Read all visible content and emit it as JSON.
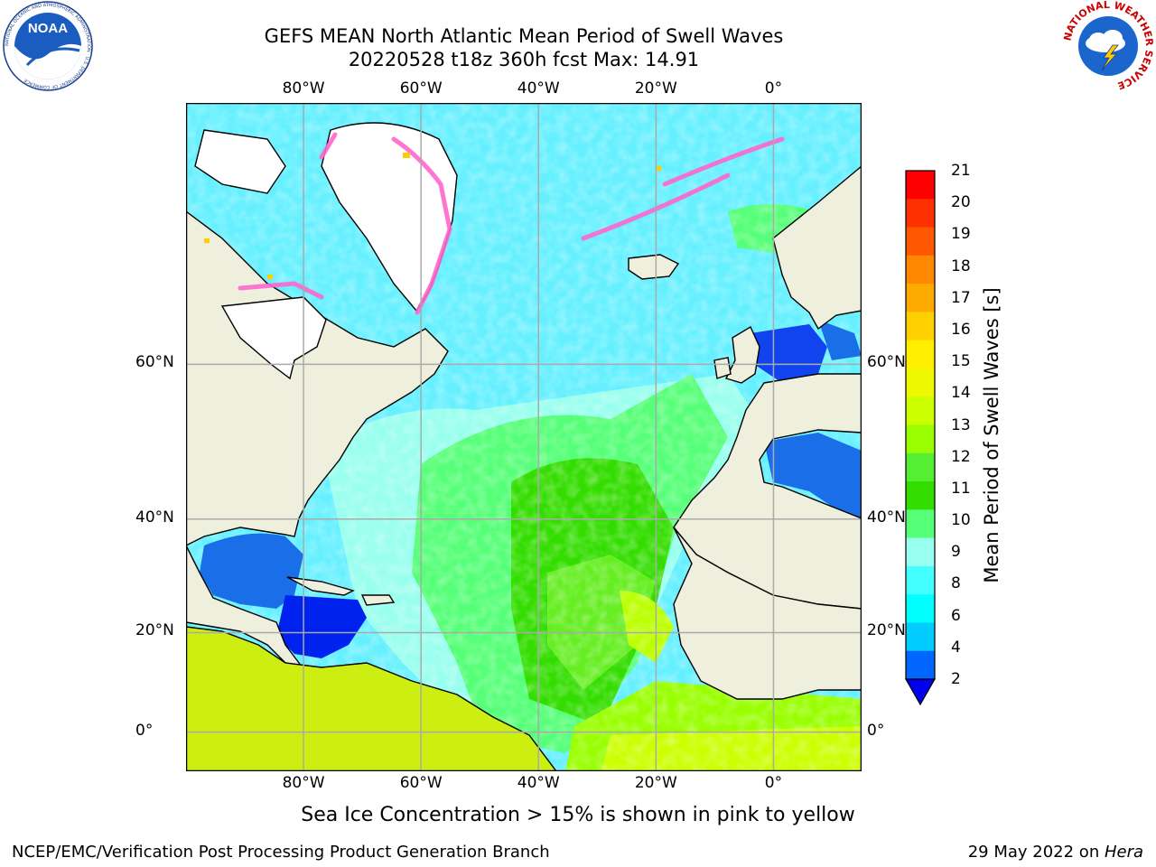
{
  "title": {
    "line1": "GEFS MEAN North Atlantic Mean Period of Swell Waves",
    "line2": "20220528 t18z 360h fcst   Max: 14.91"
  },
  "logos": {
    "left": "NOAA",
    "left_ring_text": "NATIONAL OCEANIC AND ATMOSPHERIC ADMINISTRATION · U.S. DEPARTMENT OF COMMERCE",
    "right_ring_text": "NATIONAL WEATHER SERVICE"
  },
  "map": {
    "lon_labels": [
      "80°W",
      "60°W",
      "40°W",
      "20°W",
      "0°"
    ],
    "lat_labels": [
      "60°N",
      "40°N",
      "20°N",
      "0°"
    ],
    "lon_values": [
      -80,
      -60,
      -40,
      -20,
      0
    ],
    "lat_values": [
      60,
      40,
      20,
      0
    ],
    "lon_range": [
      -100,
      15
    ],
    "lat_range": [
      -8,
      78
    ],
    "grid": true,
    "colors": {
      "land": "#efefde",
      "ice_open": "#ffffff",
      "ice_fringe": "#ff66cc",
      "coast": "#000000",
      "grid": "#aaaaaa"
    }
  },
  "colorbar": {
    "label": "Mean Period of Swell Waves [s]",
    "ticks": [
      "21",
      "20",
      "19",
      "18",
      "17",
      "16",
      "15",
      "14",
      "13",
      "12",
      "11",
      "10",
      "9",
      "8",
      "6",
      "4",
      "2"
    ],
    "colors_top_to_bottom": [
      "#ff0000",
      "#ff3000",
      "#ff5800",
      "#ff8800",
      "#ffaa00",
      "#ffd000",
      "#ffee00",
      "#eef800",
      "#ccff00",
      "#99ff00",
      "#55ee33",
      "#33dd00",
      "#55ff77",
      "#99ffee",
      "#44ffff",
      "#00ffff",
      "#00ccff",
      "#0066ff"
    ],
    "extend_color": "#0000ee"
  },
  "note": "Sea Ice Concentration > 15% is shown in pink to yellow",
  "footer": {
    "left": "NCEP/EMC/Verification Post Processing Product Generation Branch",
    "right_date": "29 May 2022 on ",
    "right_host": "Hera"
  }
}
